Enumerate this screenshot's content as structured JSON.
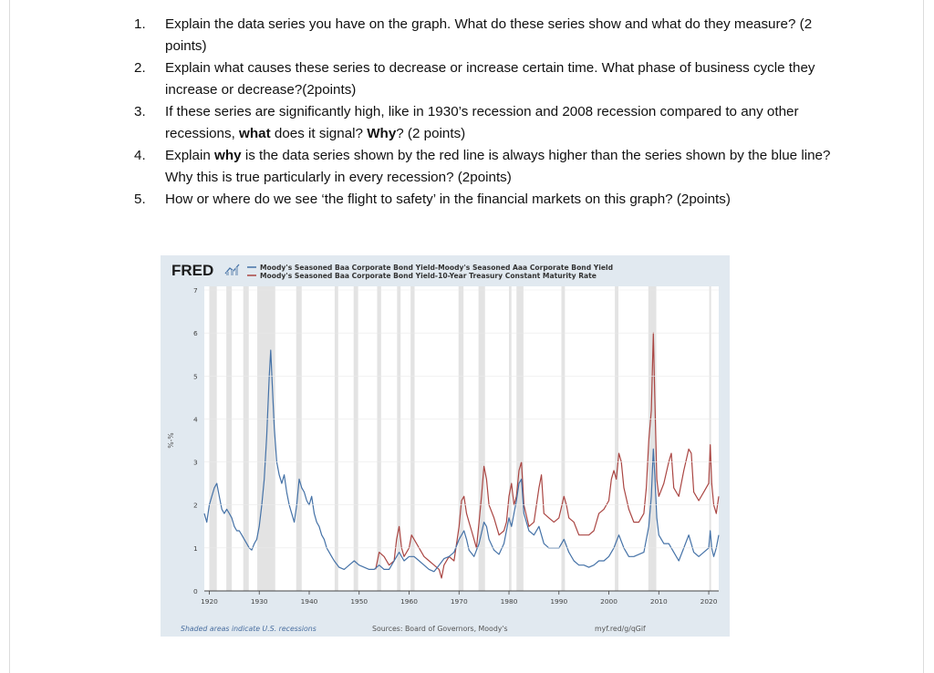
{
  "questions": [
    {
      "num": "1.",
      "parts": [
        {
          "t": "Explain the data series you have on the graph. What do these series show and what do they measure? (2 points)",
          "b": false
        }
      ]
    },
    {
      "num": "2.",
      "parts": [
        {
          "t": "Explain what causes these series to decrease or increase certain time. What phase of business cycle they increase or decrease?(2points)",
          "b": false
        }
      ]
    },
    {
      "num": "3.",
      "parts": [
        {
          "t": "If these series are significantly high, like in 1930’s recession and 2008 recession compared to any other recessions, ",
          "b": false
        },
        {
          "t": "what",
          "b": true
        },
        {
          "t": " does it signal? ",
          "b": false
        },
        {
          "t": "Why",
          "b": true
        },
        {
          "t": "? (2 points)",
          "b": false
        }
      ]
    },
    {
      "num": "4.",
      "parts": [
        {
          "t": "Explain ",
          "b": false
        },
        {
          "t": "why",
          "b": true
        },
        {
          "t": " is the data series shown by the red line is always higher than the series shown by the blue line? Why this is true particularly in every recession? (2points)",
          "b": false
        }
      ]
    },
    {
      "num": "5.",
      "parts": [
        {
          "t": "How or where do we see ‘the flight to safety’ in the financial markets on this graph? (2points)",
          "b": false
        }
      ]
    }
  ],
  "chart": {
    "logo": "FRED",
    "legend": [
      {
        "label": "Moody's Seasoned Baa Corporate Bond Yield-Moody's Seasoned Aaa Corporate Bond Yield",
        "color": "#4572a7"
      },
      {
        "label": "Moody's Seasoned Baa Corporate Bond Yield-10-Year Treasury Constant Maturity Rate",
        "color": "#aa4643"
      }
    ],
    "ylabel": "%-%",
    "footer_left": "Shaded areas indicate U.S. recessions",
    "footer_center": "Sources: Board of Governors, Moody's",
    "footer_right": "myf.red/g/qGif"
  },
  "chart_data": {
    "type": "line",
    "xlim": [
      1919,
      2022
    ],
    "ylim": [
      0,
      7
    ],
    "xticks": [
      1920,
      1930,
      1940,
      1950,
      1960,
      1970,
      1980,
      1990,
      2000,
      2010,
      2020
    ],
    "yticks": [
      0,
      1,
      2,
      3,
      4,
      5,
      6,
      7
    ],
    "recessions": [
      [
        1920.0,
        1921.5
      ],
      [
        1923.4,
        1924.5
      ],
      [
        1926.8,
        1927.9
      ],
      [
        1929.6,
        1933.2
      ],
      [
        1937.4,
        1938.5
      ],
      [
        1945.1,
        1945.8
      ],
      [
        1948.9,
        1949.8
      ],
      [
        1953.6,
        1954.4
      ],
      [
        1957.6,
        1958.3
      ],
      [
        1960.3,
        1961.1
      ],
      [
        1969.9,
        1970.9
      ],
      [
        1973.9,
        1975.2
      ],
      [
        1980.0,
        1980.5
      ],
      [
        1981.5,
        1982.9
      ],
      [
        1990.5,
        1991.2
      ],
      [
        2001.2,
        2001.9
      ],
      [
        2007.9,
        2009.5
      ],
      [
        2020.1,
        2020.3
      ]
    ],
    "series": [
      {
        "name": "Moody's Seasoned Baa Corporate Bond Yield-Moody's Seasoned Aaa Corporate Bond Yield",
        "color": "#4572a7",
        "points": [
          [
            1919.0,
            1.8
          ],
          [
            1919.5,
            1.6
          ],
          [
            1920.0,
            2.0
          ],
          [
            1920.5,
            2.2
          ],
          [
            1921.0,
            2.4
          ],
          [
            1921.5,
            2.5
          ],
          [
            1922.0,
            2.2
          ],
          [
            1922.5,
            1.9
          ],
          [
            1923.0,
            1.8
          ],
          [
            1923.5,
            1.9
          ],
          [
            1924.0,
            1.8
          ],
          [
            1924.5,
            1.7
          ],
          [
            1925.0,
            1.5
          ],
          [
            1925.5,
            1.4
          ],
          [
            1926.0,
            1.4
          ],
          [
            1926.5,
            1.3
          ],
          [
            1927.0,
            1.2
          ],
          [
            1927.5,
            1.1
          ],
          [
            1928.0,
            1.0
          ],
          [
            1928.5,
            0.95
          ],
          [
            1929.0,
            1.1
          ],
          [
            1929.5,
            1.2
          ],
          [
            1930.0,
            1.5
          ],
          [
            1930.5,
            2.0
          ],
          [
            1931.0,
            2.6
          ],
          [
            1931.5,
            3.6
          ],
          [
            1932.0,
            5.0
          ],
          [
            1932.3,
            5.6
          ],
          [
            1932.6,
            4.8
          ],
          [
            1933.0,
            3.8
          ],
          [
            1933.5,
            3.0
          ],
          [
            1934.0,
            2.7
          ],
          [
            1934.5,
            2.5
          ],
          [
            1935.0,
            2.7
          ],
          [
            1935.5,
            2.3
          ],
          [
            1936.0,
            2.0
          ],
          [
            1936.5,
            1.8
          ],
          [
            1937.0,
            1.6
          ],
          [
            1937.5,
            2.0
          ],
          [
            1938.0,
            2.6
          ],
          [
            1938.5,
            2.4
          ],
          [
            1939.0,
            2.3
          ],
          [
            1939.5,
            2.1
          ],
          [
            1940.0,
            2.0
          ],
          [
            1940.5,
            2.2
          ],
          [
            1941.0,
            1.8
          ],
          [
            1941.5,
            1.6
          ],
          [
            1942.0,
            1.5
          ],
          [
            1942.5,
            1.3
          ],
          [
            1943.0,
            1.2
          ],
          [
            1943.5,
            1.0
          ],
          [
            1944.0,
            0.9
          ],
          [
            1944.5,
            0.8
          ],
          [
            1945.0,
            0.7
          ],
          [
            1946.0,
            0.55
          ],
          [
            1947.0,
            0.5
          ],
          [
            1948.0,
            0.6
          ],
          [
            1949.0,
            0.7
          ],
          [
            1950.0,
            0.6
          ],
          [
            1951.0,
            0.55
          ],
          [
            1952.0,
            0.5
          ],
          [
            1953.0,
            0.5
          ],
          [
            1954.0,
            0.6
          ],
          [
            1955.0,
            0.5
          ],
          [
            1956.0,
            0.5
          ],
          [
            1957.0,
            0.7
          ],
          [
            1958.0,
            0.9
          ],
          [
            1959.0,
            0.7
          ],
          [
            1960.0,
            0.8
          ],
          [
            1961.0,
            0.8
          ],
          [
            1962.0,
            0.7
          ],
          [
            1963.0,
            0.6
          ],
          [
            1964.0,
            0.5
          ],
          [
            1965.0,
            0.45
          ],
          [
            1966.0,
            0.6
          ],
          [
            1967.0,
            0.75
          ],
          [
            1968.0,
            0.8
          ],
          [
            1969.0,
            0.9
          ],
          [
            1970.0,
            1.2
          ],
          [
            1971.0,
            1.4
          ],
          [
            1971.5,
            1.2
          ],
          [
            1972.0,
            0.95
          ],
          [
            1973.0,
            0.8
          ],
          [
            1974.0,
            1.1
          ],
          [
            1975.0,
            1.6
          ],
          [
            1975.5,
            1.5
          ],
          [
            1976.0,
            1.2
          ],
          [
            1977.0,
            0.95
          ],
          [
            1978.0,
            0.85
          ],
          [
            1979.0,
            1.1
          ],
          [
            1980.0,
            1.7
          ],
          [
            1980.5,
            1.5
          ],
          [
            1981.0,
            1.8
          ],
          [
            1981.5,
            2.1
          ],
          [
            1982.0,
            2.5
          ],
          [
            1982.5,
            2.6
          ],
          [
            1983.0,
            1.8
          ],
          [
            1984.0,
            1.4
          ],
          [
            1985.0,
            1.3
          ],
          [
            1986.0,
            1.5
          ],
          [
            1987.0,
            1.1
          ],
          [
            1988.0,
            1.0
          ],
          [
            1989.0,
            1.0
          ],
          [
            1990.0,
            1.0
          ],
          [
            1991.0,
            1.2
          ],
          [
            1992.0,
            0.9
          ],
          [
            1993.0,
            0.7
          ],
          [
            1994.0,
            0.6
          ],
          [
            1995.0,
            0.6
          ],
          [
            1996.0,
            0.55
          ],
          [
            1997.0,
            0.6
          ],
          [
            1998.0,
            0.7
          ],
          [
            1999.0,
            0.7
          ],
          [
            2000.0,
            0.8
          ],
          [
            2001.0,
            1.0
          ],
          [
            2002.0,
            1.3
          ],
          [
            2003.0,
            1.0
          ],
          [
            2004.0,
            0.8
          ],
          [
            2005.0,
            0.8
          ],
          [
            2006.0,
            0.85
          ],
          [
            2007.0,
            0.9
          ],
          [
            2008.0,
            1.5
          ],
          [
            2008.5,
            2.2
          ],
          [
            2008.9,
            3.3
          ],
          [
            2009.2,
            2.7
          ],
          [
            2009.6,
            1.7
          ],
          [
            2010.0,
            1.3
          ],
          [
            2011.0,
            1.1
          ],
          [
            2012.0,
            1.1
          ],
          [
            2013.0,
            0.9
          ],
          [
            2014.0,
            0.7
          ],
          [
            2015.0,
            1.0
          ],
          [
            2016.0,
            1.3
          ],
          [
            2017.0,
            0.9
          ],
          [
            2018.0,
            0.8
          ],
          [
            2019.0,
            0.9
          ],
          [
            2020.0,
            1.0
          ],
          [
            2020.3,
            1.4
          ],
          [
            2020.6,
            1.0
          ],
          [
            2021.0,
            0.8
          ],
          [
            2021.5,
            1.0
          ],
          [
            2022.0,
            1.3
          ]
        ]
      },
      {
        "name": "Moody's Seasoned Baa Corporate Bond Yield-10-Year Treasury Constant Maturity Rate",
        "color": "#aa4643",
        "points": [
          [
            1953.3,
            0.5
          ],
          [
            1954.0,
            0.9
          ],
          [
            1955.0,
            0.8
          ],
          [
            1956.0,
            0.6
          ],
          [
            1957.0,
            0.7
          ],
          [
            1957.5,
            1.2
          ],
          [
            1958.0,
            1.5
          ],
          [
            1958.5,
            1.0
          ],
          [
            1959.0,
            0.8
          ],
          [
            1960.0,
            1.0
          ],
          [
            1960.5,
            1.3
          ],
          [
            1961.0,
            1.2
          ],
          [
            1962.0,
            1.0
          ],
          [
            1963.0,
            0.8
          ],
          [
            1964.0,
            0.7
          ],
          [
            1965.0,
            0.6
          ],
          [
            1966.0,
            0.5
          ],
          [
            1966.5,
            0.3
          ],
          [
            1967.0,
            0.6
          ],
          [
            1968.0,
            0.8
          ],
          [
            1969.0,
            0.7
          ],
          [
            1970.0,
            1.5
          ],
          [
            1970.5,
            2.1
          ],
          [
            1971.0,
            2.2
          ],
          [
            1971.5,
            1.8
          ],
          [
            1972.0,
            1.6
          ],
          [
            1972.5,
            1.4
          ],
          [
            1973.0,
            1.2
          ],
          [
            1973.5,
            1.0
          ],
          [
            1974.0,
            1.6
          ],
          [
            1974.5,
            2.2
          ],
          [
            1975.0,
            2.9
          ],
          [
            1975.5,
            2.6
          ],
          [
            1976.0,
            2.0
          ],
          [
            1977.0,
            1.7
          ],
          [
            1978.0,
            1.3
          ],
          [
            1979.0,
            1.4
          ],
          [
            1979.5,
            1.6
          ],
          [
            1980.0,
            2.2
          ],
          [
            1980.5,
            2.5
          ],
          [
            1981.0,
            2.0
          ],
          [
            1981.5,
            2.2
          ],
          [
            1982.0,
            2.8
          ],
          [
            1982.5,
            3.0
          ],
          [
            1983.0,
            2.0
          ],
          [
            1984.0,
            1.5
          ],
          [
            1985.0,
            1.6
          ],
          [
            1986.0,
            2.4
          ],
          [
            1986.5,
            2.7
          ],
          [
            1987.0,
            1.8
          ],
          [
            1988.0,
            1.7
          ],
          [
            1989.0,
            1.6
          ],
          [
            1990.0,
            1.7
          ],
          [
            1991.0,
            2.2
          ],
          [
            1991.5,
            2.0
          ],
          [
            1992.0,
            1.7
          ],
          [
            1993.0,
            1.6
          ],
          [
            1994.0,
            1.3
          ],
          [
            1995.0,
            1.3
          ],
          [
            1996.0,
            1.3
          ],
          [
            1997.0,
            1.4
          ],
          [
            1998.0,
            1.8
          ],
          [
            1999.0,
            1.9
          ],
          [
            2000.0,
            2.1
          ],
          [
            2000.5,
            2.6
          ],
          [
            2001.0,
            2.8
          ],
          [
            2001.5,
            2.6
          ],
          [
            2002.0,
            3.2
          ],
          [
            2002.5,
            3.0
          ],
          [
            2003.0,
            2.4
          ],
          [
            2004.0,
            1.9
          ],
          [
            2005.0,
            1.6
          ],
          [
            2006.0,
            1.6
          ],
          [
            2007.0,
            1.8
          ],
          [
            2007.5,
            2.4
          ],
          [
            2008.0,
            3.5
          ],
          [
            2008.5,
            4.2
          ],
          [
            2008.9,
            6.0
          ],
          [
            2009.2,
            4.5
          ],
          [
            2009.6,
            2.6
          ],
          [
            2010.0,
            2.2
          ],
          [
            2011.0,
            2.5
          ],
          [
            2012.0,
            3.0
          ],
          [
            2012.5,
            3.2
          ],
          [
            2013.0,
            2.4
          ],
          [
            2014.0,
            2.2
          ],
          [
            2015.0,
            2.8
          ],
          [
            2016.0,
            3.3
          ],
          [
            2016.5,
            3.2
          ],
          [
            2017.0,
            2.3
          ],
          [
            2018.0,
            2.1
          ],
          [
            2019.0,
            2.3
          ],
          [
            2020.0,
            2.5
          ],
          [
            2020.3,
            3.4
          ],
          [
            2020.6,
            2.5
          ],
          [
            2021.0,
            2.0
          ],
          [
            2021.5,
            1.8
          ],
          [
            2022.0,
            2.2
          ]
        ]
      }
    ]
  }
}
